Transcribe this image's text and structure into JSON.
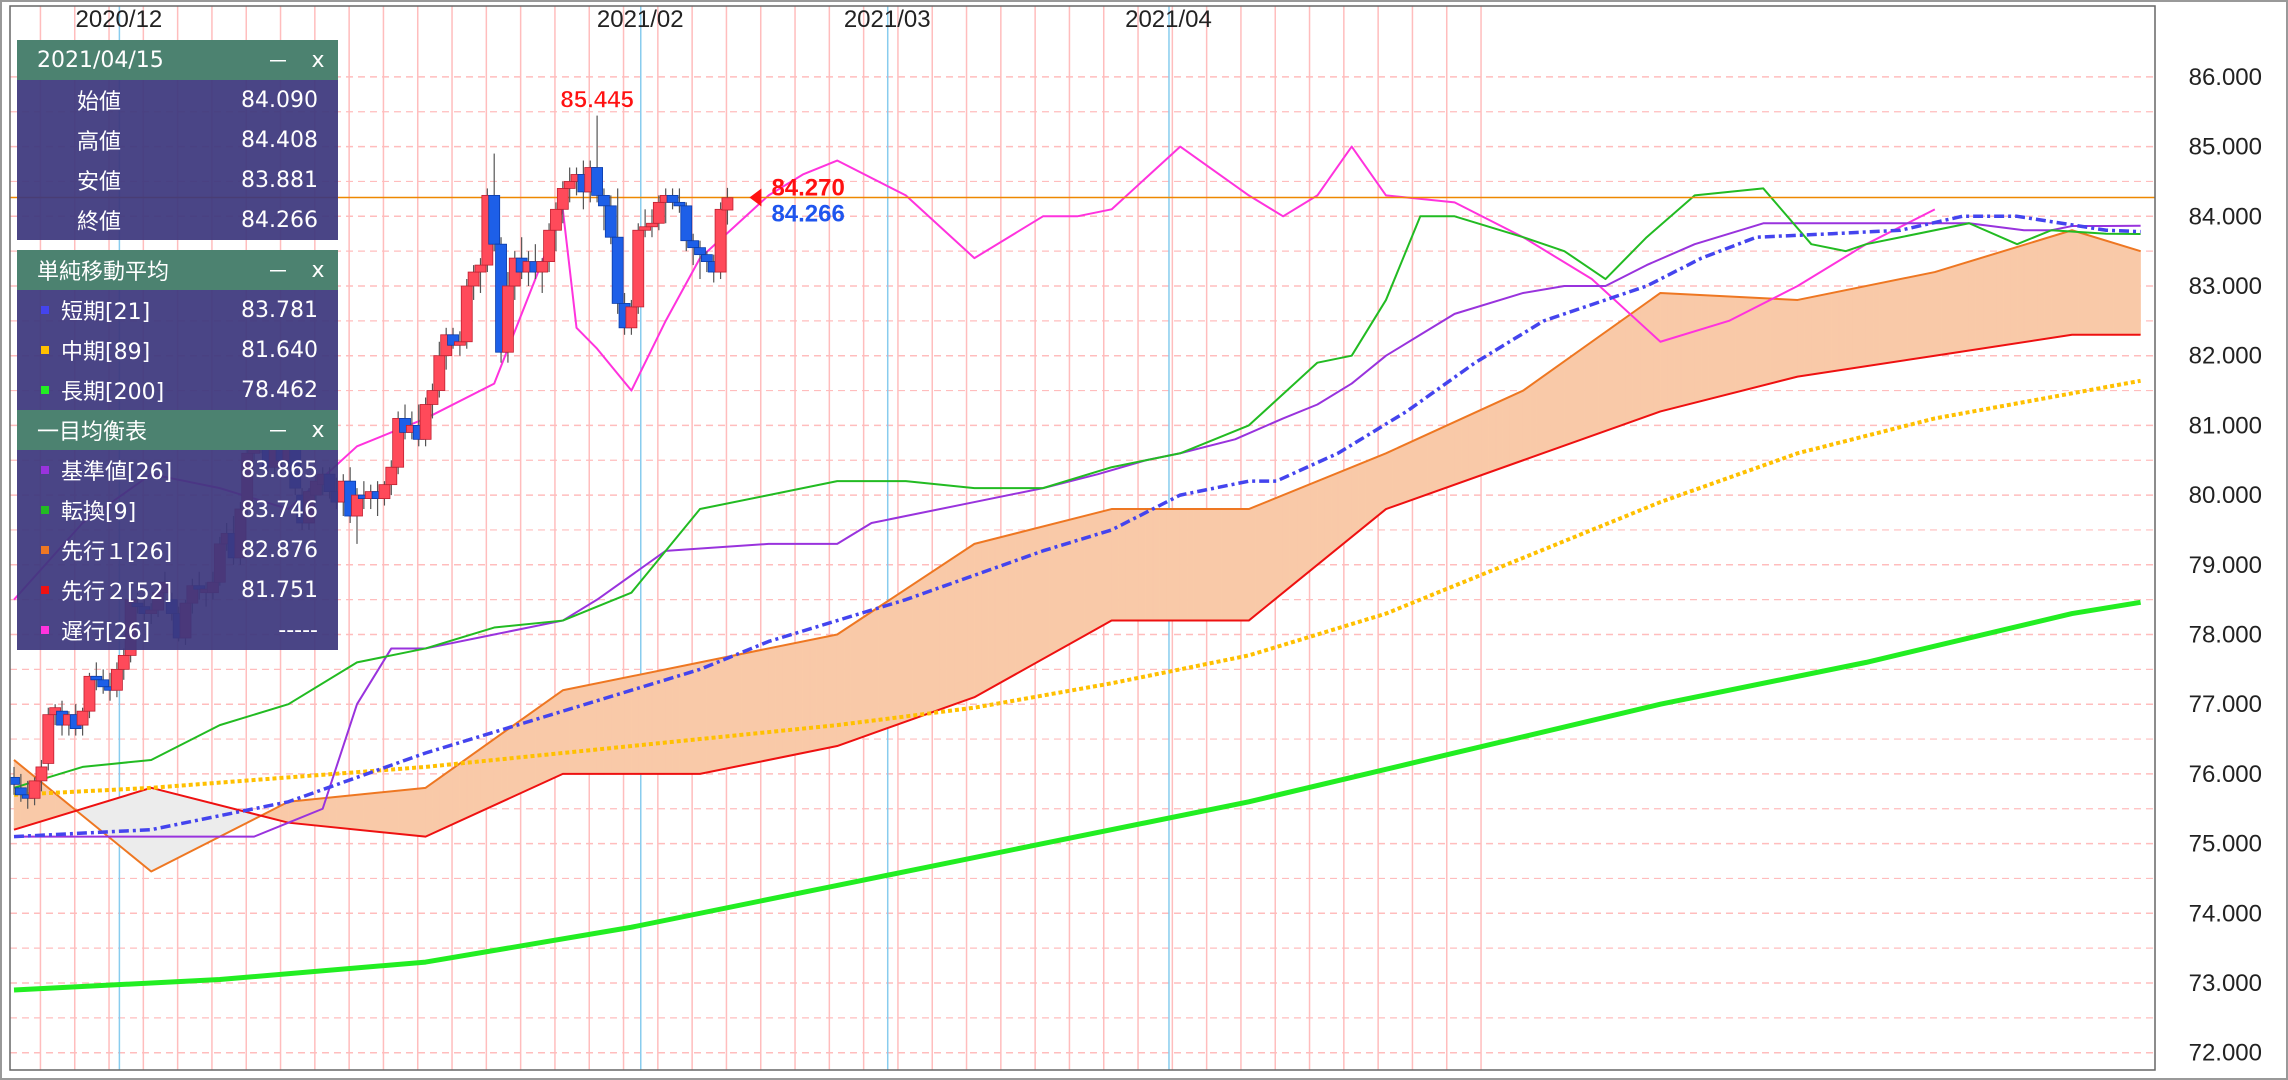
{
  "chart_data": {
    "type": "candlestick",
    "instrument_view": "daily ichimoku chart",
    "y_axis": {
      "ticks": [
        "86.000",
        "85.000",
        "84.000",
        "83.000",
        "82.000",
        "81.000",
        "80.000",
        "79.000",
        "78.000",
        "77.000",
        "76.000",
        "75.000",
        "74.000",
        "73.000",
        "72.000"
      ],
      "ylim": [
        71.8,
        86.65
      ],
      "position": "right"
    },
    "x_axis": {
      "month_labels": [
        "2020/12",
        "2021/02",
        "2021/03",
        "2021/04"
      ],
      "label_position": "top"
    },
    "price_lines": {
      "high_marker": "85.445",
      "last_close_label": "84.270",
      "sma_label": "84.266",
      "horizontal_line": 84.27
    },
    "legend_placement": "top-left overlay",
    "colors": {
      "up_candle": "#ff4a5a",
      "down_candle": "#1d5fe8",
      "sma_short": "#4444ee",
      "sma_mid": "#ffc000",
      "sma_long": "#22ee22",
      "kijun": "#9933dd",
      "tenkan": "#22bb22",
      "senkou_a": "#ee7722",
      "senkou_b": "#ee1111",
      "chikou": "#ff33dd",
      "kumo_bull": "#f9c9a8",
      "kumo_bear": "#ececec",
      "vgrid_red": "#ffbdbd",
      "vgrid_month": "#88ccee",
      "hgrid": "#ffbdbd"
    },
    "candles": [
      [
        75.95,
        76.1,
        75.7,
        75.85
      ],
      [
        75.8,
        76.0,
        75.6,
        75.7
      ],
      [
        75.7,
        75.9,
        75.5,
        75.65
      ],
      [
        75.65,
        75.95,
        75.55,
        75.9
      ],
      [
        75.9,
        76.2,
        75.75,
        76.1
      ],
      [
        76.15,
        76.95,
        76.05,
        76.85
      ],
      [
        76.85,
        77.0,
        76.7,
        76.95
      ],
      [
        76.9,
        77.05,
        76.55,
        76.7
      ],
      [
        76.7,
        76.9,
        76.55,
        76.85
      ],
      [
        76.85,
        77.0,
        76.55,
        76.65
      ],
      [
        76.7,
        76.95,
        76.55,
        76.9
      ],
      [
        76.9,
        77.45,
        76.8,
        77.4
      ],
      [
        77.4,
        77.6,
        77.2,
        77.35
      ],
      [
        77.35,
        77.5,
        77.15,
        77.25
      ],
      [
        77.25,
        77.45,
        77.05,
        77.2
      ],
      [
        77.2,
        77.6,
        77.1,
        77.5
      ],
      [
        77.5,
        77.8,
        77.35,
        77.7
      ],
      [
        77.7,
        78.6,
        77.6,
        78.5
      ],
      [
        78.45,
        78.6,
        78.3,
        78.4
      ],
      [
        78.4,
        78.5,
        78.2,
        78.3
      ],
      [
        78.3,
        78.45,
        78.15,
        78.35
      ],
      [
        78.35,
        78.7,
        78.25,
        78.6
      ],
      [
        78.6,
        78.9,
        78.5,
        78.75
      ],
      [
        78.5,
        78.6,
        78.2,
        78.3
      ],
      [
        78.3,
        78.4,
        77.9,
        77.95
      ],
      [
        77.95,
        78.5,
        77.85,
        78.45
      ],
      [
        78.45,
        78.8,
        78.3,
        78.7
      ],
      [
        78.7,
        78.9,
        78.5,
        78.65
      ],
      [
        78.6,
        78.75,
        78.4,
        78.65
      ],
      [
        78.6,
        78.9,
        78.5,
        78.75
      ],
      [
        78.75,
        79.4,
        78.7,
        79.3
      ],
      [
        79.3,
        79.6,
        79.2,
        79.45
      ],
      [
        79.45,
        79.7,
        79.0,
        79.1
      ],
      [
        79.1,
        79.9,
        79.0,
        79.8
      ],
      [
        79.8,
        80.7,
        79.7,
        80.6
      ],
      [
        80.6,
        80.9,
        80.5,
        80.8
      ],
      [
        80.8,
        81.0,
        80.6,
        80.9
      ],
      [
        80.85,
        81.0,
        80.3,
        80.4
      ],
      [
        80.4,
        80.9,
        80.3,
        80.85
      ],
      [
        80.85,
        81.0,
        80.4,
        80.5
      ],
      [
        80.5,
        80.95,
        80.4,
        80.85
      ],
      [
        80.85,
        80.95,
        80.0,
        80.1
      ],
      [
        80.0,
        80.1,
        79.5,
        79.6
      ],
      [
        79.6,
        80.1,
        79.5,
        80.05
      ],
      [
        80.0,
        80.3,
        79.9,
        80.2
      ],
      [
        80.15,
        80.4,
        80.0,
        80.3
      ],
      [
        80.3,
        80.4,
        79.95,
        80.05
      ],
      [
        80.05,
        80.25,
        79.8,
        79.9
      ],
      [
        79.9,
        80.3,
        79.7,
        80.2
      ],
      [
        80.2,
        80.4,
        79.6,
        79.7
      ],
      [
        79.7,
        80.1,
        79.3,
        80.0
      ],
      [
        80.0,
        80.2,
        79.8,
        79.95
      ],
      [
        79.95,
        80.15,
        79.8,
        80.05
      ],
      [
        80.05,
        80.2,
        79.7,
        79.95
      ],
      [
        79.95,
        80.2,
        79.85,
        80.15
      ],
      [
        80.15,
        80.5,
        80.0,
        80.4
      ],
      [
        80.4,
        81.2,
        80.3,
        81.1
      ],
      [
        81.1,
        81.3,
        80.8,
        80.9
      ],
      [
        80.9,
        81.2,
        80.8,
        81.0
      ],
      [
        81.0,
        81.3,
        80.7,
        80.8
      ],
      [
        80.8,
        81.4,
        80.7,
        81.3
      ],
      [
        81.3,
        81.6,
        81.1,
        81.5
      ],
      [
        81.5,
        82.2,
        81.4,
        82.0
      ],
      [
        82.0,
        82.4,
        81.8,
        82.3
      ],
      [
        82.3,
        82.4,
        82.1,
        82.15
      ],
      [
        82.15,
        82.35,
        82.0,
        82.2
      ],
      [
        82.2,
        83.1,
        82.1,
        83.0
      ],
      [
        83.0,
        83.3,
        82.8,
        83.2
      ],
      [
        83.2,
        83.4,
        82.9,
        83.3
      ],
      [
        83.3,
        84.4,
        83.2,
        84.3
      ],
      [
        84.3,
        84.9,
        83.5,
        83.6
      ],
      [
        83.6,
        83.7,
        81.9,
        82.05
      ],
      [
        82.05,
        83.2,
        81.9,
        83.0
      ],
      [
        83.0,
        83.5,
        82.8,
        83.4
      ],
      [
        83.4,
        83.7,
        83.1,
        83.2
      ],
      [
        83.2,
        83.5,
        83.0,
        83.35
      ],
      [
        83.35,
        83.6,
        83.1,
        83.2
      ],
      [
        83.2,
        83.4,
        82.9,
        83.35
      ],
      [
        83.35,
        83.9,
        83.2,
        83.8
      ],
      [
        83.8,
        84.2,
        83.5,
        84.1
      ],
      [
        84.1,
        84.5,
        83.9,
        84.4
      ],
      [
        84.4,
        84.7,
        84.2,
        84.5
      ],
      [
        84.5,
        84.7,
        84.3,
        84.6
      ],
      [
        84.6,
        84.8,
        84.1,
        84.35
      ],
      [
        84.35,
        84.8,
        84.2,
        84.7
      ],
      [
        84.7,
        85.445,
        84.2,
        84.3
      ],
      [
        84.3,
        84.4,
        83.8,
        84.15
      ],
      [
        84.15,
        84.3,
        83.6,
        83.7
      ],
      [
        83.7,
        84.4,
        82.6,
        82.75
      ],
      [
        82.75,
        82.9,
        82.3,
        82.4
      ],
      [
        82.4,
        82.8,
        82.3,
        82.7
      ],
      [
        82.7,
        83.9,
        82.6,
        83.8
      ],
      [
        83.8,
        84.1,
        83.7,
        83.85
      ],
      [
        83.85,
        84.1,
        83.7,
        83.9
      ],
      [
        83.9,
        84.3,
        83.8,
        84.2
      ],
      [
        84.2,
        84.4,
        83.9,
        84.3
      ],
      [
        84.3,
        84.4,
        84.1,
        84.2
      ],
      [
        84.2,
        84.4,
        84.05,
        84.15
      ],
      [
        84.15,
        84.2,
        83.5,
        83.65
      ],
      [
        83.65,
        83.75,
        83.3,
        83.55
      ],
      [
        83.55,
        83.65,
        83.1,
        83.45
      ],
      [
        83.45,
        83.5,
        83.2,
        83.35
      ],
      [
        83.35,
        83.45,
        83.05,
        83.2
      ],
      [
        83.2,
        84.2,
        83.1,
        84.1
      ],
      [
        84.09,
        84.408,
        83.881,
        84.266
      ]
    ],
    "sma_short": {
      "x": [
        0,
        20,
        40,
        60,
        80,
        100,
        110,
        130,
        150,
        160,
        170,
        180,
        184,
        193,
        203,
        213,
        223,
        238,
        246,
        254,
        265,
        275,
        284,
        292,
        305,
        310
      ],
      "y": [
        75.1,
        75.2,
        75.6,
        76.3,
        76.9,
        77.5,
        77.9,
        78.5,
        79.2,
        79.5,
        80.0,
        80.2,
        80.2,
        80.6,
        81.2,
        81.9,
        82.5,
        83.0,
        83.4,
        83.7,
        83.75,
        83.8,
        84.0,
        84.0,
        83.8,
        83.78
      ]
    },
    "sma_mid": {
      "x": [
        0,
        20,
        40,
        60,
        80,
        100,
        120,
        140,
        160,
        180,
        200,
        220,
        240,
        260,
        280,
        310
      ],
      "y": [
        75.7,
        75.8,
        75.95,
        76.1,
        76.3,
        76.5,
        76.7,
        76.95,
        77.3,
        77.7,
        78.3,
        79.1,
        79.9,
        80.6,
        81.1,
        81.64
      ]
    },
    "sma_long": {
      "x": [
        0,
        30,
        60,
        90,
        120,
        150,
        180,
        210,
        240,
        270,
        300,
        310
      ],
      "y": [
        72.9,
        73.05,
        73.3,
        73.8,
        74.4,
        75.0,
        75.6,
        76.3,
        77.0,
        77.6,
        78.3,
        78.462
      ]
    },
    "kijun": {
      "x": [
        0,
        25,
        35,
        40,
        45,
        50,
        55,
        60,
        70,
        80,
        85,
        95,
        110,
        120,
        125,
        130,
        140,
        150,
        158,
        165,
        170,
        178,
        185,
        190,
        195,
        200,
        205,
        210,
        220,
        226,
        232,
        238,
        245,
        255,
        265,
        275,
        285,
        293,
        297,
        300,
        305,
        310
      ],
      "y": [
        75.1,
        75.1,
        75.1,
        75.3,
        75.5,
        77.0,
        77.8,
        77.8,
        78.0,
        78.2,
        78.5,
        79.2,
        79.3,
        79.3,
        79.6,
        79.7,
        79.9,
        80.1,
        80.3,
        80.5,
        80.6,
        80.8,
        81.1,
        81.3,
        81.6,
        82.0,
        82.3,
        82.6,
        82.9,
        83.0,
        83.0,
        83.3,
        83.6,
        83.9,
        83.9,
        83.9,
        83.9,
        83.8,
        83.8,
        83.86,
        83.86,
        83.865
      ]
    },
    "tenkan": {
      "x": [
        0,
        10,
        20,
        30,
        40,
        50,
        60,
        70,
        80,
        90,
        100,
        110,
        120,
        130,
        140,
        150,
        160,
        170,
        180,
        190,
        195,
        200,
        205,
        210,
        220,
        226,
        232,
        238,
        245,
        255,
        262,
        267,
        270,
        275,
        285,
        292,
        297,
        305,
        310
      ],
      "y": [
        75.8,
        76.1,
        76.2,
        76.7,
        77.0,
        77.6,
        77.8,
        78.1,
        78.2,
        78.6,
        79.8,
        80.0,
        80.2,
        80.2,
        80.1,
        80.1,
        80.4,
        80.6,
        81.0,
        81.9,
        82.0,
        82.8,
        84.0,
        84.0,
        83.7,
        83.5,
        83.1,
        83.7,
        84.3,
        84.4,
        83.6,
        83.5,
        83.6,
        83.7,
        83.9,
        83.6,
        83.8,
        83.75,
        83.746
      ]
    },
    "senkou_a": {
      "x": [
        0,
        20,
        40,
        60,
        80,
        100,
        120,
        140,
        160,
        180,
        200,
        220,
        240,
        260,
        280,
        300,
        310
      ],
      "y": [
        76.2,
        74.6,
        75.6,
        75.8,
        77.2,
        77.6,
        78.0,
        79.3,
        79.8,
        79.8,
        80.6,
        81.5,
        82.9,
        82.8,
        83.2,
        83.8,
        83.5
      ]
    },
    "senkou_b": {
      "x": [
        0,
        20,
        40,
        60,
        80,
        100,
        120,
        140,
        160,
        180,
        200,
        220,
        240,
        260,
        280,
        300,
        310
      ],
      "y": [
        75.2,
        75.8,
        75.3,
        75.1,
        76.0,
        76.0,
        76.4,
        77.1,
        78.2,
        78.2,
        79.8,
        80.5,
        81.2,
        81.7,
        82.0,
        82.3,
        82.3
      ]
    },
    "chikou": {
      "x": [
        0,
        10,
        20,
        30,
        40,
        50,
        60,
        70,
        80,
        82,
        85,
        90,
        95,
        100,
        110,
        115,
        120,
        130,
        140,
        150,
        155,
        160,
        170,
        180,
        185,
        190,
        195,
        200,
        210,
        220,
        230,
        240,
        250,
        260,
        270,
        280
      ],
      "y": [
        78.5,
        79.6,
        80.3,
        80.1,
        79.8,
        80.7,
        81.1,
        81.6,
        84.1,
        82.4,
        82.1,
        81.5,
        82.5,
        83.4,
        84.3,
        84.6,
        84.8,
        84.3,
        83.4,
        84.0,
        84.0,
        84.1,
        85.0,
        84.3,
        84.0,
        84.3,
        85.0,
        84.3,
        84.2,
        83.7,
        83.1,
        82.2,
        82.5,
        83.0,
        83.6,
        84.1
      ]
    }
  },
  "panels": {
    "ohlc": {
      "title": "2021/04/15",
      "minimize": "－",
      "close": "x",
      "rows": [
        {
          "label": "始値",
          "value": "84.090"
        },
        {
          "label": "高値",
          "value": "84.408"
        },
        {
          "label": "安値",
          "value": "83.881"
        },
        {
          "label": "終値",
          "value": "84.266"
        }
      ]
    },
    "sma": {
      "title": "単純移動平均",
      "minimize": "－",
      "close": "x",
      "rows": [
        {
          "label": "短期[21]",
          "value": "83.781",
          "color": "#4444ee"
        },
        {
          "label": "中期[89]",
          "value": "81.640",
          "color": "#ffc000"
        },
        {
          "label": "長期[200]",
          "value": "78.462",
          "color": "#22ee22"
        }
      ]
    },
    "ichimoku": {
      "title": "一目均衡表",
      "minimize": "－",
      "close": "x",
      "rows": [
        {
          "label": "基準値[26]",
          "value": "83.865",
          "color": "#9933dd"
        },
        {
          "label": "転換[9]",
          "value": "83.746",
          "color": "#22bb22"
        },
        {
          "label": "先行１[26]",
          "value": "82.876",
          "color": "#ee7722"
        },
        {
          "label": "先行２[52]",
          "value": "81.751",
          "color": "#ee1111"
        },
        {
          "label": "遅行[26]",
          "value": "-----",
          "color": "#ff33dd"
        }
      ]
    }
  }
}
